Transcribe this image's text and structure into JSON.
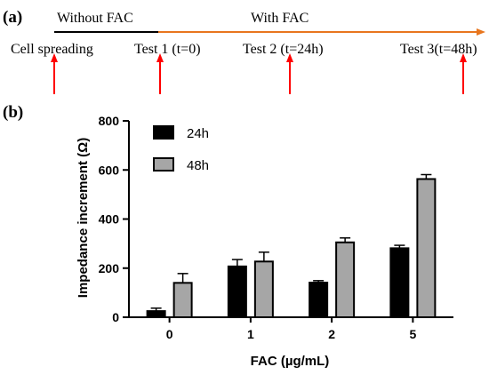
{
  "panel_a": {
    "label": "(a)",
    "phase_without": "Without FAC",
    "phase_with": "With FAC",
    "events": [
      {
        "text": "Cell spreading"
      },
      {
        "text": "Test 1 (t=0)"
      },
      {
        "text": "Test 2 (t=24h)"
      },
      {
        "text": "Test 3(t=48h)"
      }
    ],
    "colors": {
      "timeline_without": "#000000",
      "timeline_with": "#e8761e",
      "arrow": "#ff0000"
    }
  },
  "panel_b": {
    "label": "(b)"
  },
  "chart_data": {
    "type": "bar",
    "categories": [
      "0",
      "1",
      "2",
      "5"
    ],
    "series": [
      {
        "name": "24h",
        "values": [
          25,
          207,
          141,
          281
        ],
        "errors": [
          12,
          28,
          8,
          12
        ],
        "color": "#000000"
      },
      {
        "name": "48h",
        "values": [
          140,
          227,
          305,
          563
        ],
        "errors": [
          38,
          38,
          18,
          18
        ],
        "color": "#a6a6a6"
      }
    ],
    "xlabel": "FAC (µg/mL)",
    "ylabel": "Impedance increment (Ω)",
    "ylim": [
      0,
      800
    ],
    "yticks": [
      "0",
      "200",
      "400",
      "600",
      "800"
    ],
    "legend": "top-left",
    "grid": false
  }
}
